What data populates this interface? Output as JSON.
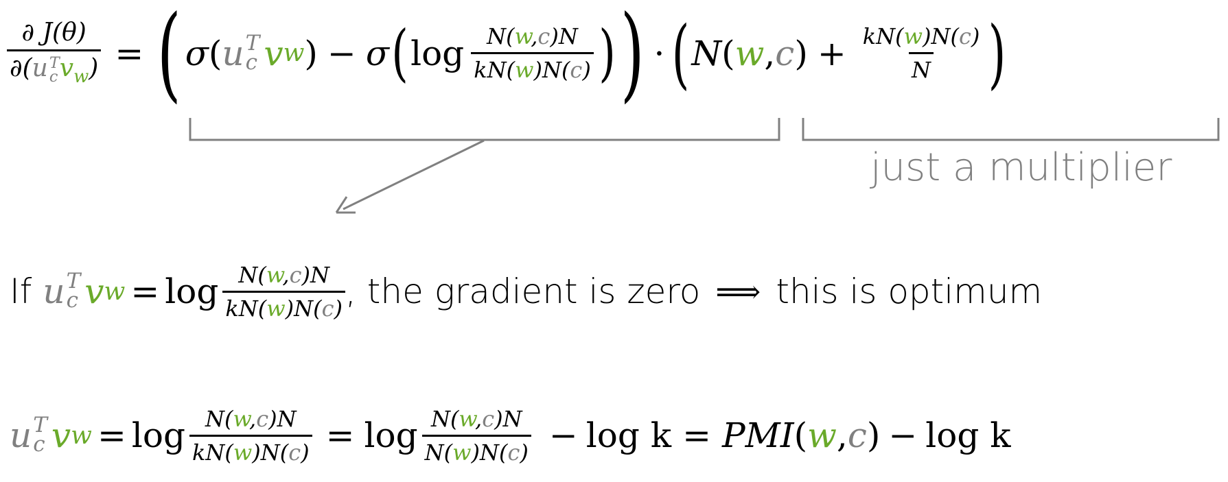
{
  "formula1": {
    "lhs_num": "∂ J(θ)",
    "lhs_den_prefix": "∂(",
    "u": "u",
    "c": "c",
    "T": "T",
    "v": "v",
    "w": "w",
    "rparen": ")",
    "eq": "=",
    "sigma": "σ",
    "minus": "−",
    "log": "log",
    "N": "N",
    "k": "k",
    "dot": "·",
    "plus": "+"
  },
  "annotations": {
    "multiplier_label": "just a multiplier"
  },
  "line2": {
    "if": "If",
    "comma_text": ", the gradient is zero",
    "implies": "⟹",
    "conclusion": "this is optimum"
  },
  "line3": {
    "log_k": "log k",
    "pmi": "PMI"
  },
  "colors": {
    "word": "#6aaa2a",
    "context": "#808080",
    "bracket": "#808080"
  }
}
